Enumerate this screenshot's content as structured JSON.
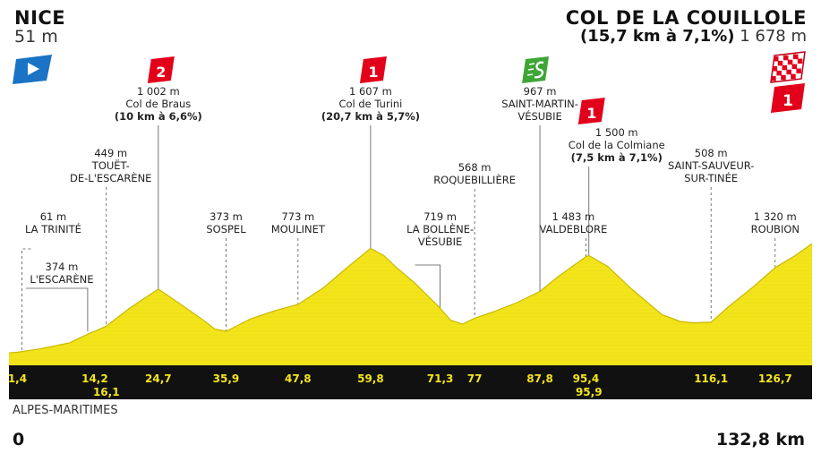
{
  "stage": {
    "start": {
      "name": "NICE",
      "altitude": "51 m"
    },
    "finish": {
      "name": "COL DE LA COUILLOLE",
      "climb": "(15,7 km à 7,1%)",
      "altitude": "1 678 m"
    },
    "region": "ALPES-MARITIMES",
    "distance_start": "0",
    "distance_total": "132,8 km"
  },
  "colors": {
    "profile_fill": "#f3e51c",
    "profile_line": "#c9b800",
    "band": "#111111",
    "km_text": "#f3e51c",
    "kom_red": "#e2001a",
    "sprint_green": "#3fa535",
    "start_blue": "#1a73c4"
  },
  "chart_data": {
    "type": "area",
    "title": "",
    "xlabel": "",
    "ylabel": "",
    "xlim": [
      0,
      132.8
    ],
    "profile": {
      "x": [
        0,
        1.4,
        5,
        10,
        13,
        14.2,
        16.1,
        20,
        24.7,
        28,
        32,
        34,
        35.9,
        40,
        44,
        47.8,
        52,
        56,
        59.8,
        62,
        64,
        67,
        71.3,
        73,
        75,
        77,
        80,
        84,
        87.8,
        91,
        95.4,
        95.9,
        99,
        103,
        108,
        111,
        113,
        116.1,
        119,
        123,
        126.7,
        130,
        132.8
      ],
      "y": [
        51,
        61,
        110,
        200,
        330,
        374,
        449,
        720,
        1002,
        800,
        550,
        410,
        373,
        560,
        680,
        773,
        1020,
        1330,
        1607,
        1500,
        1330,
        1100,
        719,
        540,
        480,
        568,
        660,
        800,
        967,
        1200,
        1483,
        1500,
        1340,
        1000,
        620,
        520,
        500,
        508,
        740,
        1030,
        1320,
        1500,
        1678
      ]
    },
    "km_markers": [
      {
        "label": "1,4",
        "x": 1.4,
        "row": 1
      },
      {
        "label": "14,2",
        "x": 14.2,
        "row": 1
      },
      {
        "label": "16,1",
        "x": 16.1,
        "row": 2
      },
      {
        "label": "24,7",
        "x": 24.7,
        "row": 1
      },
      {
        "label": "35,9",
        "x": 35.9,
        "row": 1
      },
      {
        "label": "47,8",
        "x": 47.8,
        "row": 1
      },
      {
        "label": "59,8",
        "x": 59.8,
        "row": 1
      },
      {
        "label": "71,3",
        "x": 71.3,
        "row": 1
      },
      {
        "label": "77",
        "x": 77,
        "row": 1
      },
      {
        "label": "87,8",
        "x": 87.8,
        "row": 1
      },
      {
        "label": "95,4",
        "x": 95.4,
        "row": 1
      },
      {
        "label": "95,9",
        "x": 95.9,
        "row": 2
      },
      {
        "label": "116,1",
        "x": 116.1,
        "row": 1
      },
      {
        "label": "126,7",
        "x": 126.7,
        "row": 1
      }
    ],
    "waypoints": [
      {
        "x": 1.4,
        "lines": [
          "61 m",
          "LA TRINITÉ"
        ],
        "tier": 5
      },
      {
        "x": 14.2,
        "lines": [
          "374 m",
          "L'ESCARÈNE"
        ],
        "tier": 7
      },
      {
        "x": 16.1,
        "lines": [
          "449 m",
          "TOUËT-",
          "DE-L'ESCARÈNE"
        ],
        "tier": 3
      },
      {
        "x": 24.7,
        "lines": [
          "1 002 m",
          "Col de Braus",
          "(10 km à 6,6%)"
        ],
        "tier": 1,
        "category": "2"
      },
      {
        "x": 35.9,
        "lines": [
          "373 m",
          "SOSPEL"
        ],
        "tier": 5
      },
      {
        "x": 47.8,
        "lines": [
          "773 m",
          "MOULINET"
        ],
        "tier": 5
      },
      {
        "x": 59.8,
        "lines": [
          "1 607 m",
          "Col de Turini",
          "(20,7 km à 5,7%)"
        ],
        "tier": 1,
        "category": "1"
      },
      {
        "x": 71.3,
        "lines": [
          "719 m",
          "LA BOLLÈNE-",
          "VÉSUBIE"
        ],
        "tier": 5
      },
      {
        "x": 77,
        "lines": [
          "568 m",
          "ROQUEBILLIÈRE"
        ],
        "tier": 4
      },
      {
        "x": 87.8,
        "lines": [
          "967 m",
          "SAINT-MARTIN-",
          "VÉSUBIE"
        ],
        "tier": 1,
        "sprint": true
      },
      {
        "x": 95.4,
        "lines": [
          "1 483 m",
          "VALDEBLORE"
        ],
        "tier": 5
      },
      {
        "x": 95.9,
        "lines": [
          "1 500 m",
          "Col de la Colmiane",
          "(7,5 km à 7,1%)"
        ],
        "tier": 2,
        "category": "1"
      },
      {
        "x": 116.1,
        "lines": [
          "508 m",
          "SAINT-SAUVEUR-",
          "SUR-TINÉE"
        ],
        "tier": 3
      },
      {
        "x": 126.7,
        "lines": [
          "1 320 m",
          "ROUBION"
        ],
        "tier": 5
      }
    ],
    "finish_category": "1"
  }
}
